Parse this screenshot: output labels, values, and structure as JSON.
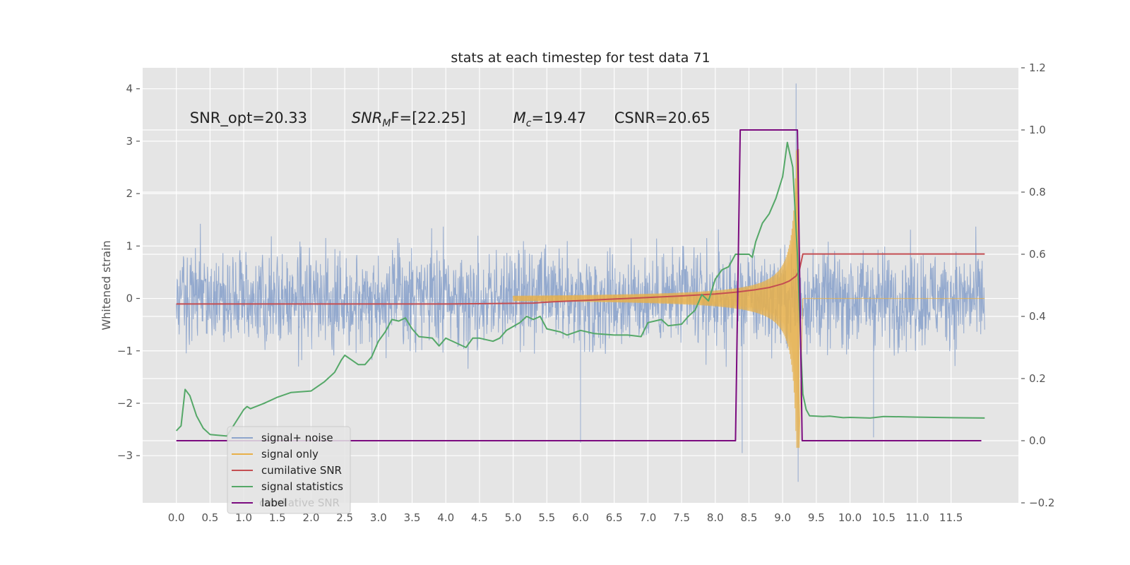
{
  "chart_data": {
    "type": "line",
    "title": "stats at each timestep for test data 71",
    "ylabel": "Whitened strain",
    "xlim": [
      -0.5,
      12.5
    ],
    "ylim": [
      -3.9,
      4.4
    ],
    "y2lim": [
      -0.2,
      1.2
    ],
    "x_ticks": [
      "0.0",
      "0.5",
      "1.0",
      "1.5",
      "2.0",
      "2.5",
      "3.0",
      "3.5",
      "4.0",
      "4.5",
      "5.0",
      "5.5",
      "6.0",
      "6.5",
      "7.0",
      "7.5",
      "8.0",
      "8.5",
      "9.0",
      "9.5",
      "10.0",
      "10.5",
      "11.0",
      "11.5"
    ],
    "x_tick_values": [
      0,
      0.5,
      1,
      1.5,
      2,
      2.5,
      3,
      3.5,
      4,
      4.5,
      5,
      5.5,
      6,
      6.5,
      7,
      7.5,
      8,
      8.5,
      9,
      9.5,
      10,
      10.5,
      11,
      11.5
    ],
    "y_ticks": [
      "−3",
      "−2",
      "−1",
      "0",
      "1",
      "2",
      "3",
      "4"
    ],
    "y_tick_values": [
      -3,
      -2,
      -1,
      0,
      1,
      2,
      3,
      4
    ],
    "y2_ticks": [
      "−0.2",
      "0.0",
      "0.2",
      "0.4",
      "0.6",
      "0.8",
      "1.0",
      "1.2"
    ],
    "y2_tick_values": [
      -0.2,
      0,
      0.2,
      0.4,
      0.6,
      0.8,
      1.0,
      1.2
    ],
    "grid": true,
    "legend_placement": "lower-left",
    "annotations": [
      {
        "text": "SNR_opt=20.33",
        "x": 0.2,
        "y": 3.35
      },
      {
        "main": "SNR",
        "sub": "M",
        "rest": "F=[22.25]",
        "x": 2.6,
        "y": 3.35
      },
      {
        "main": "M",
        "sub": "c",
        "rest": "=19.47",
        "x": 5.0,
        "y": 3.35
      },
      {
        "text": "CSNR=20.65",
        "x": 6.5,
        "y": 3.35
      }
    ],
    "legend_ghost_text": "cumilative SNR",
    "series": [
      {
        "name": "signal+ noise",
        "color": "#8ea5cc",
        "axis": "left",
        "kind": "noise",
        "x_range": [
          0,
          12.0
        ],
        "envelope_typ": 1.55,
        "envelope_max": 2.8,
        "spikes": [
          [
            6.0,
            -2.75
          ],
          [
            8.4,
            -2.95
          ],
          [
            9.2,
            4.1
          ],
          [
            9.23,
            -3.5
          ],
          [
            10.35,
            -2.65
          ]
        ]
      },
      {
        "name": "signal only",
        "color": "#e8b04a",
        "axis": "left",
        "kind": "chirp",
        "x_range": [
          5.0,
          9.3
        ],
        "coalescence": 9.25,
        "peak_amplitude": 2.85,
        "after": 0.0
      },
      {
        "name": "cumilative SNR",
        "color": "#c44e52",
        "axis": "right",
        "x": [
          0,
          1,
          2,
          3,
          4,
          5,
          5.3,
          5.6,
          6,
          6.5,
          7,
          7.5,
          8,
          8.3,
          8.6,
          8.8,
          9.0,
          9.1,
          9.2,
          9.25,
          9.3,
          9.5,
          12.0
        ],
        "values": [
          0.44,
          0.44,
          0.44,
          0.44,
          0.44,
          0.442,
          0.443,
          0.447,
          0.451,
          0.456,
          0.461,
          0.466,
          0.472,
          0.478,
          0.486,
          0.493,
          0.505,
          0.514,
          0.53,
          0.55,
          0.601,
          0.601,
          0.601
        ]
      },
      {
        "name": "signal statistics",
        "color": "#55a868",
        "axis": "right",
        "x": [
          0,
          0.07,
          0.13,
          0.2,
          0.3,
          0.4,
          0.5,
          0.6,
          0.75,
          1.0,
          1.05,
          1.1,
          1.3,
          1.5,
          1.7,
          2.0,
          2.2,
          2.35,
          2.45,
          2.5,
          2.6,
          2.7,
          2.8,
          2.9,
          3.0,
          3.1,
          3.2,
          3.3,
          3.4,
          3.5,
          3.6,
          3.8,
          3.9,
          4.0,
          4.3,
          4.4,
          4.5,
          4.7,
          4.8,
          4.9,
          5.1,
          5.2,
          5.3,
          5.4,
          5.5,
          5.7,
          5.8,
          6.0,
          6.2,
          6.5,
          6.7,
          6.9,
          7.0,
          7.2,
          7.3,
          7.5,
          7.6,
          7.7,
          7.8,
          7.9,
          8.0,
          8.1,
          8.2,
          8.3,
          8.4,
          8.5,
          8.55,
          8.6,
          8.7,
          8.8,
          8.9,
          9.0,
          9.07,
          9.15,
          9.22,
          9.27,
          9.3,
          9.35,
          9.4,
          9.6,
          9.7,
          9.9,
          10.0,
          10.3,
          10.5,
          11.0,
          11.5,
          12.0
        ],
        "values": [
          0.032,
          0.048,
          0.165,
          0.145,
          0.08,
          0.04,
          0.02,
          0.018,
          0.015,
          0.1,
          0.11,
          0.103,
          0.12,
          0.14,
          0.155,
          0.16,
          0.19,
          0.22,
          0.26,
          0.275,
          0.26,
          0.245,
          0.245,
          0.27,
          0.32,
          0.35,
          0.39,
          0.385,
          0.395,
          0.36,
          0.335,
          0.33,
          0.305,
          0.33,
          0.3,
          0.33,
          0.33,
          0.32,
          0.33,
          0.355,
          0.38,
          0.4,
          0.39,
          0.4,
          0.36,
          0.35,
          0.34,
          0.355,
          0.345,
          0.34,
          0.34,
          0.335,
          0.38,
          0.39,
          0.37,
          0.375,
          0.4,
          0.42,
          0.47,
          0.45,
          0.52,
          0.55,
          0.56,
          0.6,
          0.6,
          0.6,
          0.59,
          0.64,
          0.7,
          0.73,
          0.78,
          0.85,
          0.96,
          0.88,
          0.6,
          0.3,
          0.15,
          0.1,
          0.08,
          0.078,
          0.079,
          0.074,
          0.075,
          0.073,
          0.078,
          0.076,
          0.074,
          0.073
        ]
      },
      {
        "name": "label",
        "color": "#7b0b7f",
        "axis": "right",
        "x": [
          0,
          8.3,
          8.37,
          9.22,
          9.29,
          11.95
        ],
        "values": [
          0,
          0,
          1,
          1,
          0,
          0
        ]
      }
    ]
  }
}
